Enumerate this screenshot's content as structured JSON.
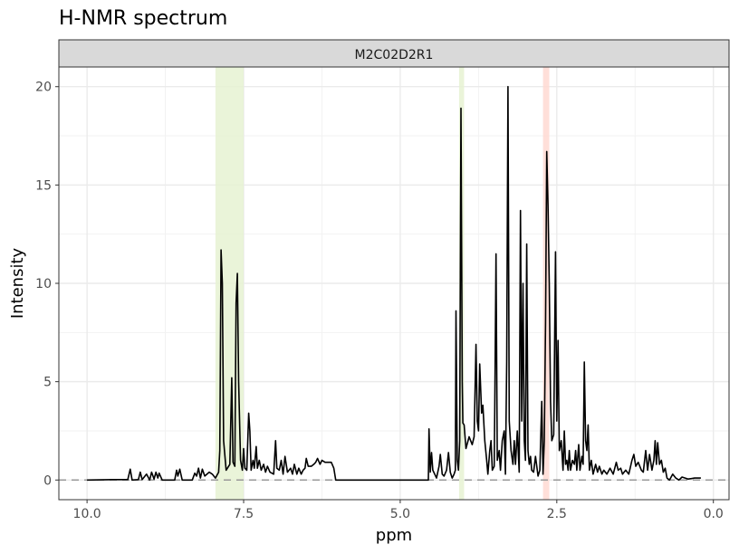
{
  "chart_data": {
    "type": "line",
    "title": "H-NMR spectrum",
    "panel": "M2C02D2R1",
    "xlabel": "ppm",
    "ylabel": "Intensity",
    "xlim": [
      10.45,
      -0.25
    ],
    "ylim": [
      -1.0,
      21.0
    ],
    "x_reversed": true,
    "x_ticks": [
      10.0,
      7.5,
      5.0,
      2.5,
      0.0
    ],
    "x_tick_labels": [
      "10.0",
      "7.5",
      "5.0",
      "2.5",
      "0.0"
    ],
    "y_ticks": [
      0,
      5,
      10,
      15,
      20
    ],
    "y_tick_labels": [
      "0",
      "5",
      "10",
      "15",
      "20"
    ],
    "grid": true,
    "legend": "none",
    "baseline": 0,
    "highlight_regions": [
      {
        "from": 7.95,
        "to": 7.5,
        "color": "#e6f2d2"
      },
      {
        "from": 4.06,
        "to": 3.98,
        "color": "#e6f2d2"
      },
      {
        "from": 2.72,
        "to": 2.62,
        "color": "#ffd9d2"
      }
    ],
    "series": [
      {
        "color": "#000000",
        "points": [
          [
            10.0,
            0.0
          ],
          [
            9.6,
            0.02
          ],
          [
            9.35,
            0.02
          ],
          [
            9.31,
            0.55
          ],
          [
            9.28,
            0.0
          ],
          [
            9.18,
            0.02
          ],
          [
            9.15,
            0.4
          ],
          [
            9.12,
            0.02
          ],
          [
            9.05,
            0.3
          ],
          [
            9.0,
            0.0
          ],
          [
            8.97,
            0.4
          ],
          [
            8.93,
            0.05
          ],
          [
            8.9,
            0.4
          ],
          [
            8.87,
            0.1
          ],
          [
            8.85,
            0.35
          ],
          [
            8.8,
            0.0
          ],
          [
            8.6,
            0.0
          ],
          [
            8.57,
            0.5
          ],
          [
            8.55,
            0.2
          ],
          [
            8.52,
            0.55
          ],
          [
            8.48,
            0.0
          ],
          [
            8.32,
            0.0
          ],
          [
            8.28,
            0.35
          ],
          [
            8.25,
            0.2
          ],
          [
            8.22,
            0.6
          ],
          [
            8.19,
            0.1
          ],
          [
            8.16,
            0.55
          ],
          [
            8.12,
            0.2
          ],
          [
            8.05,
            0.4
          ],
          [
            8.0,
            0.3
          ],
          [
            7.95,
            0.1
          ],
          [
            7.9,
            0.4
          ],
          [
            7.88,
            1.5
          ],
          [
            7.86,
            11.7
          ],
          [
            7.84,
            10.0
          ],
          [
            7.82,
            2.0
          ],
          [
            7.78,
            0.5
          ],
          [
            7.72,
            0.8
          ],
          [
            7.69,
            5.2
          ],
          [
            7.67,
            0.9
          ],
          [
            7.64,
            0.7
          ],
          [
            7.62,
            9.0
          ],
          [
            7.6,
            10.5
          ],
          [
            7.58,
            5.0
          ],
          [
            7.55,
            1.0
          ],
          [
            7.52,
            0.5
          ],
          [
            7.5,
            1.6
          ],
          [
            7.48,
            0.6
          ],
          [
            7.45,
            0.5
          ],
          [
            7.42,
            3.4
          ],
          [
            7.4,
            2.5
          ],
          [
            7.38,
            0.5
          ],
          [
            7.35,
            1.0
          ],
          [
            7.33,
            0.6
          ],
          [
            7.3,
            1.7
          ],
          [
            7.28,
            0.6
          ],
          [
            7.25,
            1.0
          ],
          [
            7.22,
            0.5
          ],
          [
            7.18,
            0.8
          ],
          [
            7.15,
            0.4
          ],
          [
            7.12,
            0.7
          ],
          [
            7.08,
            0.4
          ],
          [
            7.02,
            0.3
          ],
          [
            6.99,
            2.0
          ],
          [
            6.97,
            0.6
          ],
          [
            6.93,
            0.5
          ],
          [
            6.9,
            1.0
          ],
          [
            6.87,
            0.3
          ],
          [
            6.84,
            1.2
          ],
          [
            6.8,
            0.4
          ],
          [
            6.75,
            0.6
          ],
          [
            6.72,
            0.3
          ],
          [
            6.69,
            0.8
          ],
          [
            6.65,
            0.3
          ],
          [
            6.62,
            0.6
          ],
          [
            6.58,
            0.3
          ],
          [
            6.55,
            0.5
          ],
          [
            6.52,
            0.6
          ],
          [
            6.5,
            1.1
          ],
          [
            6.47,
            0.7
          ],
          [
            6.42,
            0.7
          ],
          [
            6.38,
            0.8
          ],
          [
            6.35,
            0.9
          ],
          [
            6.32,
            1.1
          ],
          [
            6.28,
            0.8
          ],
          [
            6.25,
            1.0
          ],
          [
            6.2,
            0.9
          ],
          [
            6.1,
            0.9
          ],
          [
            6.06,
            0.6
          ],
          [
            6.03,
            0.0
          ],
          [
            5.5,
            0.0
          ],
          [
            4.8,
            0.0
          ],
          [
            4.55,
            0.0
          ],
          [
            4.54,
            2.6
          ],
          [
            4.52,
            0.4
          ],
          [
            4.5,
            1.4
          ],
          [
            4.48,
            0.5
          ],
          [
            4.45,
            0.3
          ],
          [
            4.42,
            0.1
          ],
          [
            4.38,
            0.7
          ],
          [
            4.36,
            1.3
          ],
          [
            4.33,
            0.3
          ],
          [
            4.3,
            0.2
          ],
          [
            4.26,
            0.5
          ],
          [
            4.23,
            1.4
          ],
          [
            4.2,
            0.4
          ],
          [
            4.17,
            0.1
          ],
          [
            4.14,
            0.3
          ],
          [
            4.12,
            0.5
          ],
          [
            4.11,
            8.6
          ],
          [
            4.09,
            1.0
          ],
          [
            4.07,
            0.5
          ],
          [
            4.05,
            2.0
          ],
          [
            4.03,
            18.9
          ],
          [
            4.01,
            5.0
          ],
          [
            4.0,
            2.9
          ],
          [
            3.98,
            2.8
          ],
          [
            3.95,
            1.6
          ],
          [
            3.9,
            2.2
          ],
          [
            3.85,
            1.8
          ],
          [
            3.82,
            2.2
          ],
          [
            3.79,
            6.9
          ],
          [
            3.77,
            3.0
          ],
          [
            3.75,
            2.5
          ],
          [
            3.73,
            5.9
          ],
          [
            3.7,
            3.4
          ],
          [
            3.68,
            3.8
          ],
          [
            3.65,
            2.0
          ],
          [
            3.62,
            1.0
          ],
          [
            3.6,
            0.3
          ],
          [
            3.57,
            1.5
          ],
          [
            3.55,
            2.0
          ],
          [
            3.53,
            0.5
          ],
          [
            3.5,
            0.7
          ],
          [
            3.49,
            3.5
          ],
          [
            3.47,
            11.5
          ],
          [
            3.45,
            1.0
          ],
          [
            3.42,
            1.5
          ],
          [
            3.4,
            0.5
          ],
          [
            3.37,
            2.0
          ],
          [
            3.34,
            2.5
          ],
          [
            3.32,
            0.3
          ],
          [
            3.3,
            6.0
          ],
          [
            3.28,
            20.0
          ],
          [
            3.26,
            3.0
          ],
          [
            3.23,
            1.5
          ],
          [
            3.2,
            0.8
          ],
          [
            3.18,
            2.0
          ],
          [
            3.16,
            0.8
          ],
          [
            3.13,
            2.5
          ],
          [
            3.1,
            0.4
          ],
          [
            3.08,
            13.7
          ],
          [
            3.06,
            3.0
          ],
          [
            3.04,
            10.0
          ],
          [
            3.02,
            2.0
          ],
          [
            3.0,
            1.0
          ],
          [
            2.98,
            12.0
          ],
          [
            2.96,
            1.5
          ],
          [
            2.94,
            0.8
          ],
          [
            2.92,
            1.2
          ],
          [
            2.9,
            0.5
          ],
          [
            2.87,
            0.4
          ],
          [
            2.84,
            1.2
          ],
          [
            2.8,
            0.2
          ],
          [
            2.77,
            0.5
          ],
          [
            2.74,
            4.0
          ],
          [
            2.72,
            0.3
          ],
          [
            2.7,
            2.0
          ],
          [
            2.68,
            8.0
          ],
          [
            2.66,
            16.7
          ],
          [
            2.64,
            14.0
          ],
          [
            2.62,
            10.0
          ],
          [
            2.6,
            4.0
          ],
          [
            2.58,
            2.0
          ],
          [
            2.55,
            2.3
          ],
          [
            2.52,
            11.6
          ],
          [
            2.5,
            3.0
          ],
          [
            2.48,
            7.1
          ],
          [
            2.46,
            1.5
          ],
          [
            2.43,
            2.0
          ],
          [
            2.4,
            0.5
          ],
          [
            2.38,
            2.5
          ],
          [
            2.36,
            0.8
          ],
          [
            2.34,
            1.0
          ],
          [
            2.32,
            0.5
          ],
          [
            2.3,
            1.5
          ],
          [
            2.28,
            0.5
          ],
          [
            2.25,
            1.0
          ],
          [
            2.22,
            0.8
          ],
          [
            2.2,
            1.5
          ],
          [
            2.18,
            0.5
          ],
          [
            2.15,
            1.8
          ],
          [
            2.13,
            0.5
          ],
          [
            2.1,
            1.2
          ],
          [
            2.08,
            0.8
          ],
          [
            2.06,
            6.0
          ],
          [
            2.04,
            2.0
          ],
          [
            2.02,
            1.5
          ],
          [
            2.0,
            2.8
          ],
          [
            1.98,
            0.5
          ],
          [
            1.95,
            1.0
          ],
          [
            1.92,
            0.3
          ],
          [
            1.88,
            0.8
          ],
          [
            1.85,
            0.4
          ],
          [
            1.82,
            0.7
          ],
          [
            1.78,
            0.3
          ],
          [
            1.75,
            0.5
          ],
          [
            1.7,
            0.3
          ],
          [
            1.65,
            0.6
          ],
          [
            1.6,
            0.3
          ],
          [
            1.55,
            0.9
          ],
          [
            1.52,
            0.5
          ],
          [
            1.48,
            0.6
          ],
          [
            1.45,
            0.3
          ],
          [
            1.4,
            0.5
          ],
          [
            1.35,
            0.3
          ],
          [
            1.3,
            1.0
          ],
          [
            1.27,
            1.3
          ],
          [
            1.24,
            0.7
          ],
          [
            1.2,
            0.9
          ],
          [
            1.15,
            0.5
          ],
          [
            1.12,
            0.4
          ],
          [
            1.08,
            1.5
          ],
          [
            1.05,
            0.5
          ],
          [
            1.02,
            1.3
          ],
          [
            0.98,
            0.5
          ],
          [
            0.95,
            1.0
          ],
          [
            0.93,
            2.0
          ],
          [
            0.91,
            0.8
          ],
          [
            0.89,
            1.9
          ],
          [
            0.86,
            0.8
          ],
          [
            0.83,
            1.0
          ],
          [
            0.8,
            0.4
          ],
          [
            0.77,
            0.6
          ],
          [
            0.74,
            0.1
          ],
          [
            0.7,
            0.0
          ],
          [
            0.65,
            0.3
          ],
          [
            0.6,
            0.1
          ],
          [
            0.55,
            0.0
          ],
          [
            0.5,
            0.15
          ],
          [
            0.4,
            0.05
          ],
          [
            0.3,
            0.1
          ],
          [
            0.2,
            0.1
          ]
        ]
      }
    ]
  }
}
